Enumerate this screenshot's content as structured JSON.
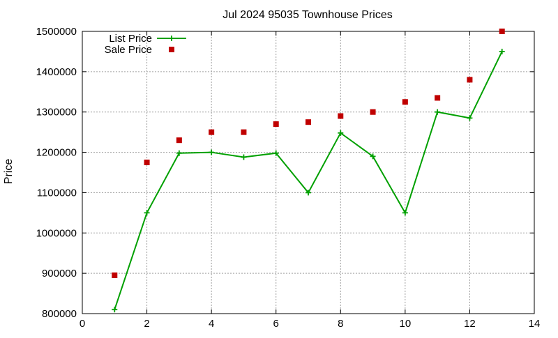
{
  "colors": {
    "list_price": "#00a000",
    "sale_price": "#c00000",
    "grid": "#a0a0a0",
    "axis": "#000000"
  },
  "chart_data": {
    "type": "line",
    "title": "Jul 2024 95035 Townhouse Prices",
    "xlabel": "",
    "ylabel": "Price",
    "xlim": [
      0,
      14
    ],
    "ylim": [
      800000,
      1500000
    ],
    "xticks": [
      0,
      2,
      4,
      6,
      8,
      10,
      12,
      14
    ],
    "yticks": [
      800000,
      900000,
      1000000,
      1100000,
      1200000,
      1300000,
      1400000,
      1500000
    ],
    "grid": true,
    "legend_position": "top-left",
    "series": [
      {
        "name": "List Price",
        "style": "lines+crosses",
        "color": "#00a000",
        "x": [
          1,
          2,
          3,
          4,
          5,
          6,
          7,
          8,
          9,
          10,
          11,
          12,
          13
        ],
        "y": [
          810000,
          1050000,
          1198000,
          1200000,
          1188000,
          1198000,
          1100000,
          1248000,
          1190000,
          1050000,
          1300000,
          1285000,
          1450000
        ]
      },
      {
        "name": "Sale Price",
        "style": "squares",
        "color": "#c00000",
        "x": [
          1,
          2,
          3,
          4,
          5,
          6,
          7,
          8,
          9,
          10,
          11,
          12,
          13
        ],
        "y": [
          895000,
          1175000,
          1230000,
          1250000,
          1250000,
          1270000,
          1275000,
          1290000,
          1300000,
          1325000,
          1335000,
          1380000,
          1500000
        ]
      }
    ]
  }
}
